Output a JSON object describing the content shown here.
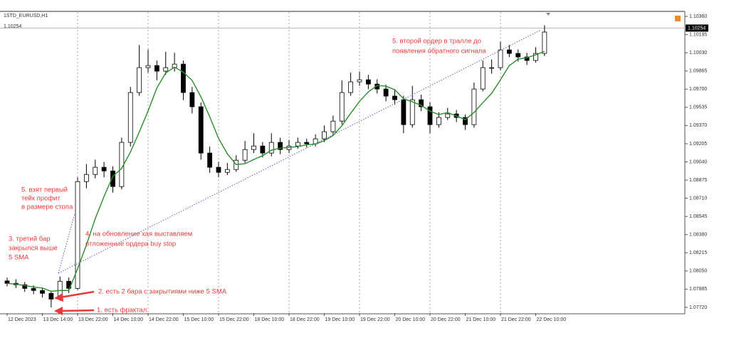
{
  "chart_data": {
    "type": "candlestick",
    "title": "1STD_EURUSD,H1",
    "current_price": 1.10254,
    "up_color": "#ffffff",
    "down_color": "#000000",
    "sma_color": "#2e8b2e",
    "annotation_color": "#e83a3a",
    "grid": true,
    "ylim": [
      1.07668,
      1.10399
    ],
    "yticks": [
      {
        "value": 1.1036,
        "label": "1.10360"
      },
      {
        "value": 1.10195,
        "label": "1.10195"
      },
      {
        "value": 1.1003,
        "label": "1.10030"
      },
      {
        "value": 1.09865,
        "label": "1.09865"
      },
      {
        "value": 1.097,
        "label": "1.09700"
      },
      {
        "value": 1.09535,
        "label": "1.09535"
      },
      {
        "value": 1.0937,
        "label": "1.09370"
      },
      {
        "value": 1.09205,
        "label": "1.09205"
      },
      {
        "value": 1.0904,
        "label": "1.09040"
      },
      {
        "value": 1.08875,
        "label": "1.08875"
      },
      {
        "value": 1.0871,
        "label": "1.08710"
      },
      {
        "value": 1.08545,
        "label": "1.08545"
      },
      {
        "value": 1.0838,
        "label": "1.08380"
      },
      {
        "value": 1.08215,
        "label": "1.08215"
      },
      {
        "value": 1.0805,
        "label": "1.08050"
      },
      {
        "value": 1.07885,
        "label": "1.07885"
      },
      {
        "value": 1.0772,
        "label": "1.07720"
      }
    ],
    "categories": [
      "12 Dec 2023",
      null,
      null,
      null,
      "13 Dec 14:00",
      null,
      null,
      null,
      "13 Dec 22:00",
      null,
      null,
      null,
      "14 Dec 10:00",
      null,
      null,
      null,
      "14 Dec 22:00",
      null,
      null,
      null,
      "15 Dec 10:00",
      null,
      null,
      null,
      "15 Dec 22:00",
      null,
      null,
      null,
      "18 Dec 10:00",
      null,
      null,
      null,
      "18 Dec 22:00",
      null,
      null,
      null,
      "19 Dec 10:00",
      null,
      null,
      null,
      "19 Dec 22:00",
      null,
      null,
      null,
      "20 Dec 10:00",
      null,
      null,
      null,
      "20 Dec 22:00",
      null,
      null,
      null,
      "21 Dec 10:00",
      null,
      null,
      null,
      "21 Dec 22:00",
      null,
      null,
      null,
      "22 Dec 10:00",
      null
    ],
    "open": [
      1.0796,
      1.07938,
      1.07925,
      1.07892,
      1.07873,
      1.07847,
      1.07795,
      1.07957,
      1.07892,
      1.08861,
      1.08926,
      1.08991,
      1.08958,
      1.08816,
      1.09217,
      1.09669,
      1.09895,
      1.09914,
      1.09863,
      1.09895,
      1.09927,
      1.09669,
      1.0954,
      1.0912,
      1.08991,
      1.08945,
      1.08971,
      1.09055,
      1.09152,
      1.09184,
      1.0912,
      1.09217,
      1.09152,
      1.09184,
      1.09217,
      1.09204,
      1.09249,
      1.09314,
      1.0941,
      1.09669,
      1.09766,
      1.09785,
      1.09746,
      1.09701,
      1.09637,
      1.09604,
      1.09378,
      1.09604,
      1.0954,
      1.09378,
      1.09443,
      1.09475,
      1.09443,
      1.09378,
      1.09701,
      1.09895,
      1.09895,
      1.10056,
      1.10024,
      1.09992,
      1.0996,
      1.10024
    ],
    "high": [
      1.0799,
      1.07975,
      1.0795,
      1.0792,
      1.079,
      1.0787,
      1.08,
      1.0799,
      1.089,
      1.0902,
      1.0906,
      1.0904,
      1.09,
      1.0926,
      1.0972,
      1.101,
      1.1006,
      1.0996,
      1.1004,
      1.1003,
      1.0996,
      1.0972,
      1.0958,
      1.0918,
      1.0904,
      1.0903,
      1.091,
      1.0923,
      1.093,
      1.0922,
      1.093,
      1.0926,
      1.0924,
      1.0926,
      1.0925,
      1.0929,
      1.0937,
      1.0946,
      1.0978,
      1.0985,
      1.0986,
      1.0983,
      1.0979,
      1.0974,
      1.097,
      1.0964,
      1.0973,
      1.0965,
      1.0958,
      1.0949,
      1.0953,
      1.0951,
      1.0947,
      1.0976,
      1.0996,
      1.0997,
      1.1013,
      1.101,
      1.1006,
      1.1003,
      1.1008,
      1.1028
    ],
    "low": [
      1.0791,
      1.07895,
      1.0786,
      1.0784,
      1.0781,
      1.0772,
      1.0778,
      1.0785,
      1.0788,
      1.088,
      1.0889,
      1.089,
      1.0876,
      1.0879,
      1.0918,
      1.0964,
      1.0985,
      1.0978,
      1.0983,
      1.0986,
      1.096,
      1.0948,
      1.0906,
      1.0894,
      1.089,
      1.0892,
      1.0895,
      1.0903,
      1.0912,
      1.0908,
      1.0909,
      1.0911,
      1.0912,
      1.0916,
      1.0917,
      1.0918,
      1.0922,
      1.0929,
      1.0938,
      1.0964,
      1.0973,
      1.097,
      1.0966,
      1.0959,
      1.0956,
      1.093,
      1.0935,
      1.095,
      1.093,
      1.0935,
      1.0942,
      1.094,
      1.0933,
      1.0935,
      1.0968,
      1.0984,
      1.0987,
      1.0999,
      1.0995,
      1.0992,
      1.0994,
      1.1
    ],
    "close": [
      1.07938,
      1.07925,
      1.07892,
      1.07873,
      1.07847,
      1.07795,
      1.07957,
      1.07892,
      1.08861,
      1.08926,
      1.08991,
      1.08958,
      1.08816,
      1.09217,
      1.09669,
      1.09895,
      1.09914,
      1.09863,
      1.09895,
      1.09927,
      1.09669,
      1.0954,
      1.0912,
      1.08991,
      1.08945,
      1.08971,
      1.09055,
      1.09152,
      1.09184,
      1.0912,
      1.09217,
      1.09152,
      1.09184,
      1.09217,
      1.09204,
      1.09249,
      1.09314,
      1.0941,
      1.09669,
      1.09766,
      1.09785,
      1.09746,
      1.09701,
      1.09637,
      1.09604,
      1.09378,
      1.09604,
      1.0954,
      1.09378,
      1.09443,
      1.09475,
      1.09443,
      1.09378,
      1.09701,
      1.09895,
      1.09895,
      1.10056,
      1.10024,
      1.09992,
      1.0996,
      1.10024,
      1.10218
    ],
    "sma_values": [
      1.07938,
      1.07931,
      1.07918,
      1.07905,
      1.07895,
      1.07866,
      1.07873,
      1.07873,
      1.08071,
      1.08286,
      1.08525,
      1.08726,
      1.0891,
      1.08981,
      1.0913,
      1.09311,
      1.09502,
      1.09711,
      1.09847,
      1.09899,
      1.09854,
      1.09779,
      1.0963,
      1.09449,
      1.09253,
      1.09113,
      1.09016,
      1.09023,
      1.09062,
      1.09096,
      1.09146,
      1.09165,
      1.09171,
      1.09178,
      1.09195,
      1.09201,
      1.09233,
      1.09279,
      1.09369,
      1.09481,
      1.09589,
      1.09675,
      1.09733,
      1.09727,
      1.09695,
      1.09613,
      1.09585,
      1.09553,
      1.09501,
      1.09469,
      1.09488,
      1.09456,
      1.09423,
      1.09488,
      1.09578,
      1.09662,
      1.09785,
      1.09914,
      1.09972,
      1.09985,
      1.10011,
      1.10043
    ],
    "annotations": [
      {
        "lines": [
          "5. взят первый",
          "тейк профит",
          "в размере стопа"
        ]
      },
      {
        "lines": [
          "3. третий бар",
          "закрылся выше",
          "5 SMA"
        ]
      },
      {
        "lines": [
          "4. на обновление хая выставляем",
          "отложенные ордера buy stop"
        ]
      },
      {
        "lines": [
          "5. второй ордер в тралле до",
          "появления обратного сигнала"
        ]
      },
      {
        "lines": [
          "2. есть 2 бара с закрытиями ниже 5 SMA"
        ]
      },
      {
        "lines": [
          "1. есть фрактал"
        ]
      }
    ]
  }
}
